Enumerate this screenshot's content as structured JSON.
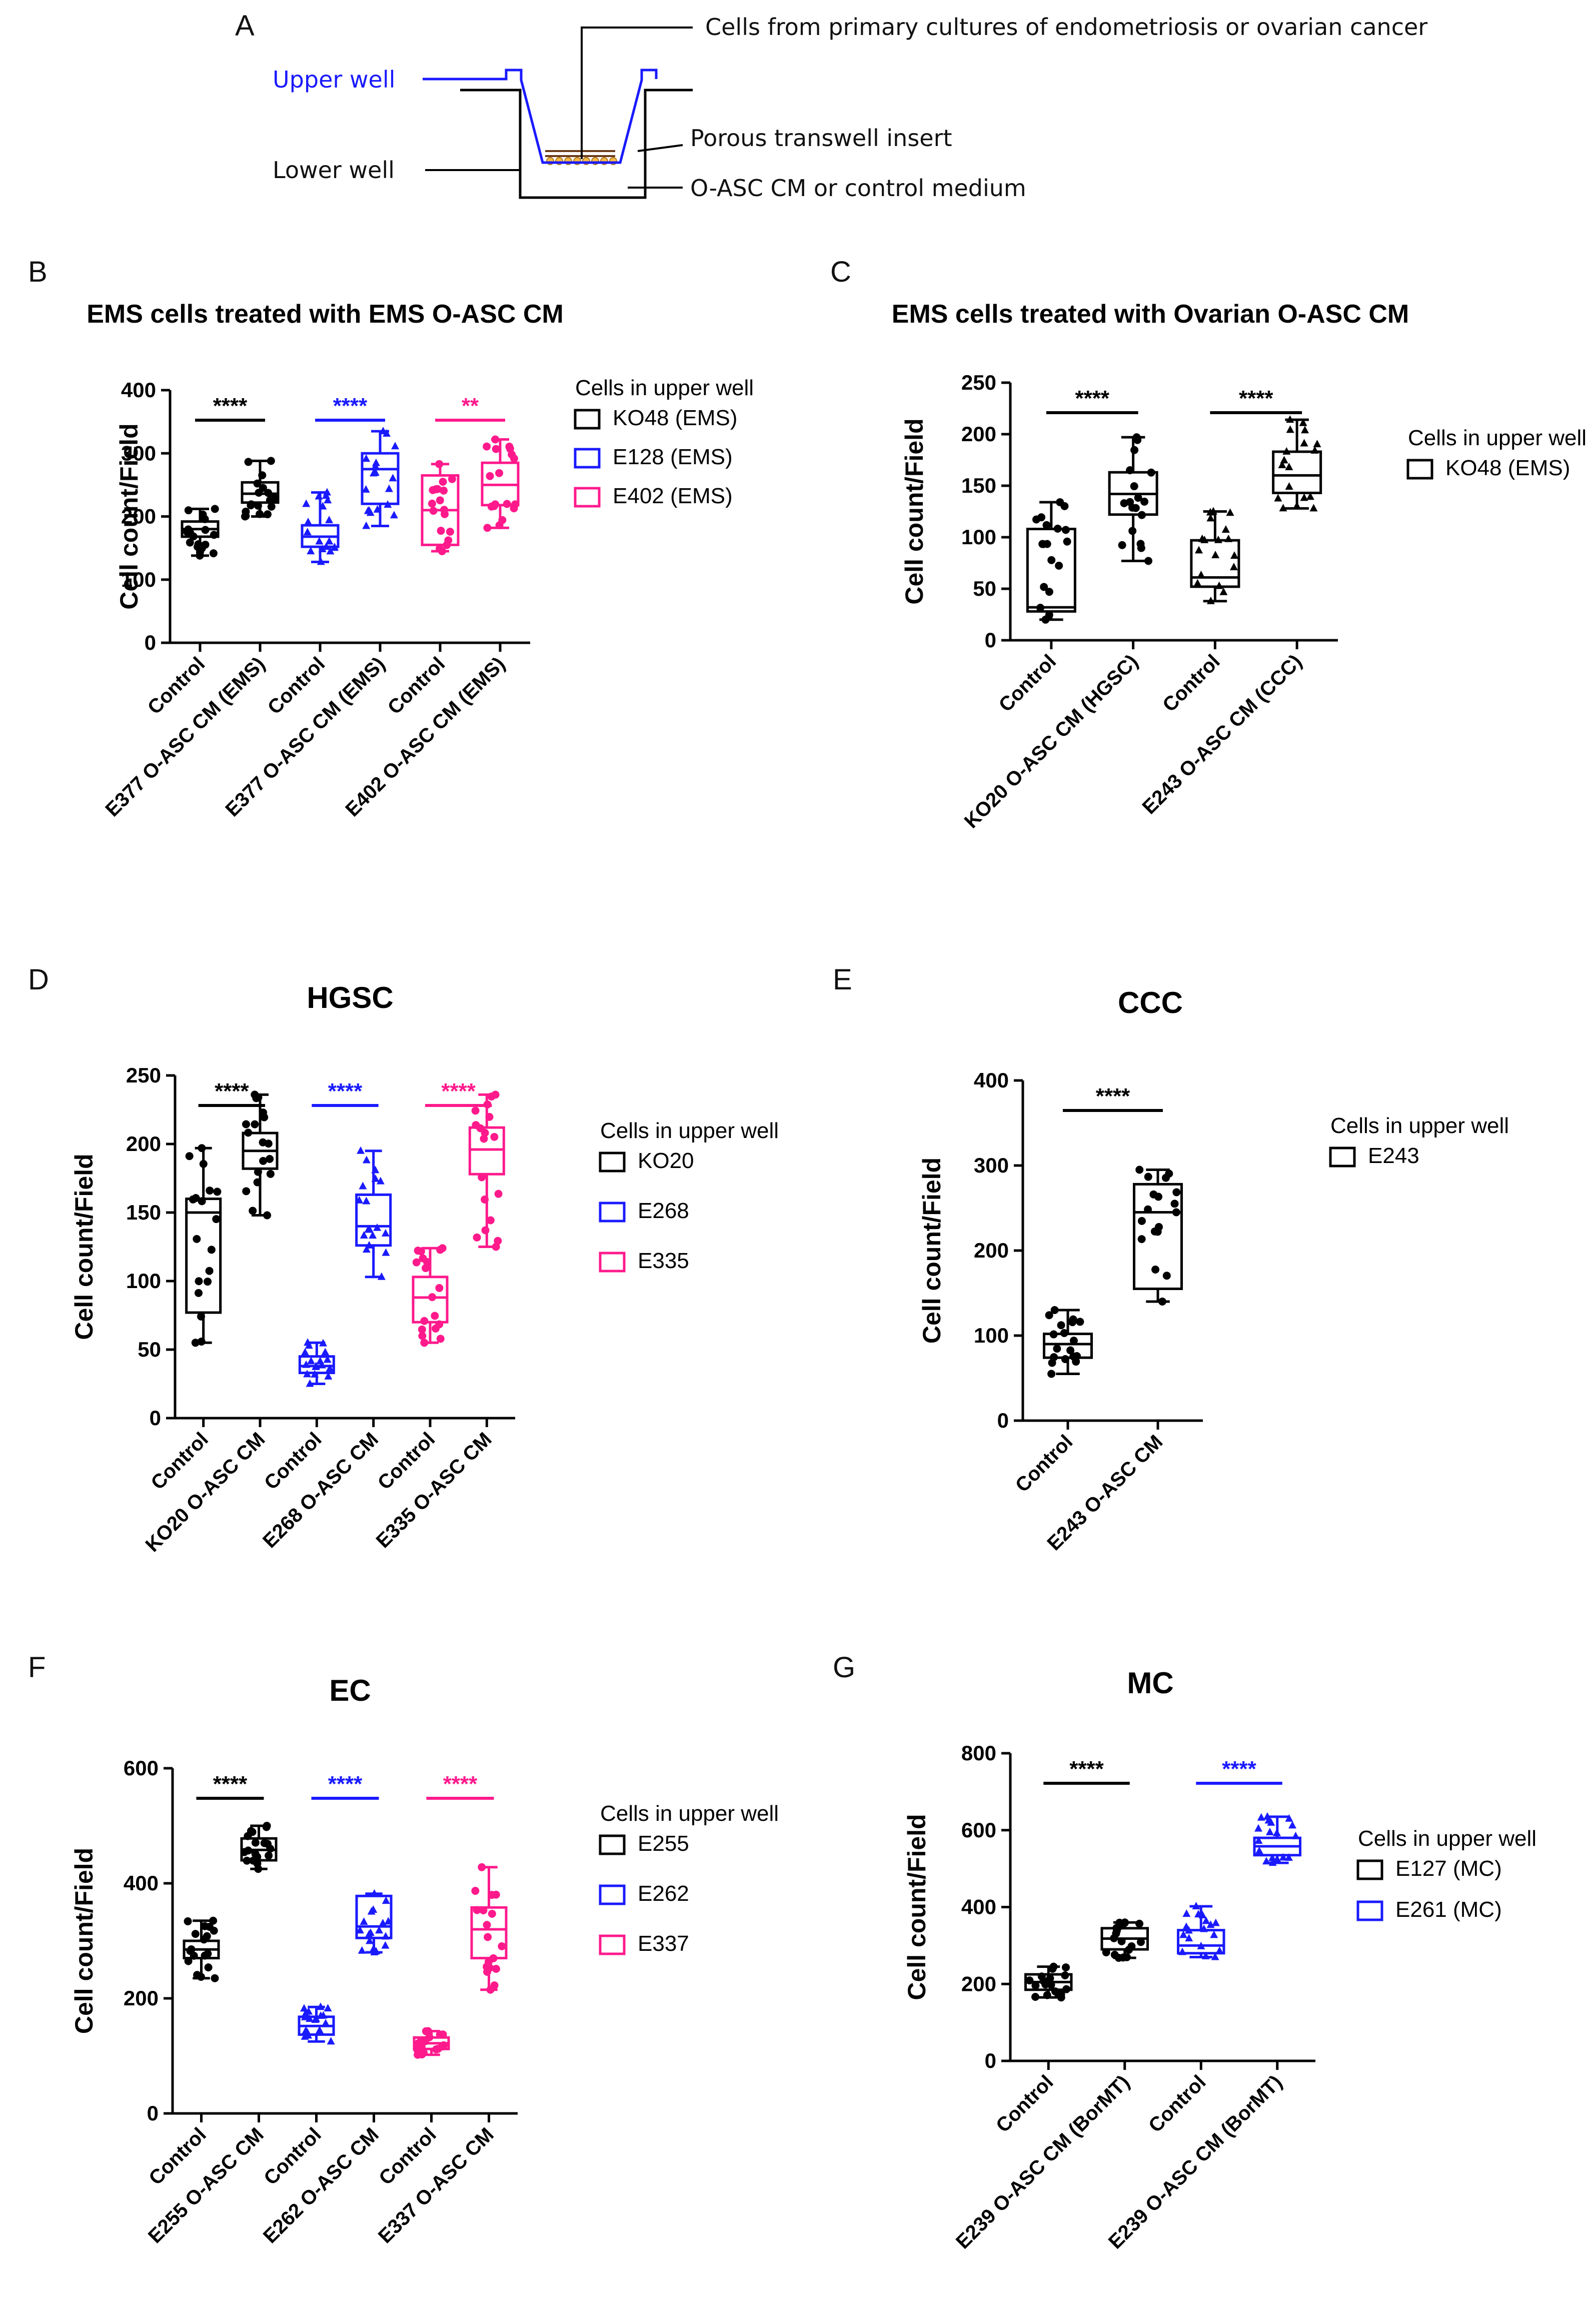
{
  "panel_labels": [
    "A",
    "B",
    "C",
    "D",
    "E",
    "F",
    "G"
  ],
  "schematic": {
    "upper_well": "Upper well",
    "lower_well": "Lower well",
    "cells_label": "Cells from primary cultures of endometriosis or ovarian cancer",
    "insert_label": "Porous transwell insert",
    "medium_label": "O-ASC CM or control medium",
    "upper_color": "#1a1aff"
  },
  "chart_data": [
    {
      "panel": "B",
      "type": "box",
      "title": "EMS cells treated with EMS O-ASC CM",
      "ylabel": "Cell count/Field",
      "ylim": [
        0,
        400
      ],
      "yticks": [
        0,
        100,
        200,
        300,
        400
      ],
      "categories": [
        "Control",
        "E377 O-ASC CM (EMS)",
        "Control",
        "E377 O-ASC CM (EMS)",
        "Control",
        "E402 O-ASC CM (EMS)"
      ],
      "legend_title": "Cells in upper well",
      "legend": [
        {
          "name": "KO48 (EMS)",
          "color": "#000000"
        },
        {
          "name": "E128 (EMS)",
          "color": "#1a1aff"
        },
        {
          "name": "E402 (EMS)",
          "color": "#ff1a8c"
        }
      ],
      "boxes": [
        {
          "min": 138,
          "q1": 168,
          "median": 180,
          "q3": 192,
          "max": 212,
          "color": "#000000",
          "marker": "circle"
        },
        {
          "min": 200,
          "q1": 222,
          "median": 236,
          "q3": 254,
          "max": 288,
          "color": "#000000",
          "marker": "circle"
        },
        {
          "min": 128,
          "q1": 152,
          "median": 168,
          "q3": 186,
          "max": 238,
          "color": "#1a1aff",
          "marker": "triangle"
        },
        {
          "min": 185,
          "q1": 220,
          "median": 275,
          "q3": 300,
          "max": 335,
          "color": "#1a1aff",
          "marker": "triangle"
        },
        {
          "min": 145,
          "q1": 155,
          "median": 210,
          "q3": 265,
          "max": 283,
          "color": "#ff1a8c",
          "marker": "circle"
        },
        {
          "min": 182,
          "q1": 218,
          "median": 250,
          "q3": 285,
          "max": 322,
          "color": "#ff1a8c",
          "marker": "circle"
        }
      ],
      "significance": [
        {
          "pair": [
            0,
            1
          ],
          "label": "****",
          "color": "#000000"
        },
        {
          "pair": [
            2,
            3
          ],
          "label": "****",
          "color": "#1a1aff"
        },
        {
          "pair": [
            4,
            5
          ],
          "label": "**",
          "color": "#ff1a8c"
        }
      ]
    },
    {
      "panel": "C",
      "type": "box",
      "title": "EMS cells treated with Ovarian O-ASC CM",
      "ylabel": "Cell count/Field",
      "ylim": [
        0,
        250
      ],
      "yticks": [
        0,
        50,
        100,
        150,
        200,
        250
      ],
      "categories": [
        "Control",
        "KO20 O-ASC CM (HGSC)",
        "Control",
        "E243 O-ASC CM (CCC)"
      ],
      "legend_title": "Cells in upper well",
      "legend": [
        {
          "name": "KO48 (EMS)",
          "color": "#000000"
        }
      ],
      "boxes": [
        {
          "min": 20,
          "q1": 28,
          "median": 32,
          "q3": 108,
          "max": 134,
          "color": "#000000",
          "marker": "circle"
        },
        {
          "min": 77,
          "q1": 122,
          "median": 142,
          "q3": 163,
          "max": 197,
          "color": "#000000",
          "marker": "circle"
        },
        {
          "min": 38,
          "q1": 52,
          "median": 61,
          "q3": 97,
          "max": 125,
          "color": "#000000",
          "marker": "triangle"
        },
        {
          "min": 128,
          "q1": 143,
          "median": 160,
          "q3": 183,
          "max": 214,
          "color": "#000000",
          "marker": "triangle"
        }
      ],
      "significance": [
        {
          "pair": [
            0,
            1
          ],
          "label": "****",
          "color": "#000000"
        },
        {
          "pair": [
            2,
            3
          ],
          "label": "****",
          "color": "#000000"
        }
      ]
    },
    {
      "panel": "D",
      "type": "box",
      "title": "HGSC",
      "ylabel": "Cell count/Field",
      "ylim": [
        0,
        250
      ],
      "yticks": [
        0,
        50,
        100,
        150,
        200,
        250
      ],
      "categories": [
        "Control",
        "KO20 O-ASC CM",
        "Control",
        "E268 O-ASC CM",
        "Control",
        "E335 O-ASC CM"
      ],
      "legend_title": "Cells in upper well",
      "legend": [
        {
          "name": "KO20",
          "color": "#000000"
        },
        {
          "name": "E268",
          "color": "#1a1aff"
        },
        {
          "name": "E335",
          "color": "#ff1a8c"
        }
      ],
      "boxes": [
        {
          "min": 55,
          "q1": 77,
          "median": 150,
          "q3": 160,
          "max": 197,
          "color": "#000000",
          "marker": "circle"
        },
        {
          "min": 148,
          "q1": 182,
          "median": 195,
          "q3": 208,
          "max": 236,
          "color": "#000000",
          "marker": "circle"
        },
        {
          "min": 25,
          "q1": 33,
          "median": 38,
          "q3": 45,
          "max": 55,
          "color": "#1a1aff",
          "marker": "triangle"
        },
        {
          "min": 103,
          "q1": 126,
          "median": 140,
          "q3": 163,
          "max": 195,
          "color": "#1a1aff",
          "marker": "triangle"
        },
        {
          "min": 55,
          "q1": 70,
          "median": 88,
          "q3": 103,
          "max": 124,
          "color": "#ff1a8c",
          "marker": "circle"
        },
        {
          "min": 125,
          "q1": 178,
          "median": 196,
          "q3": 212,
          "max": 236,
          "color": "#ff1a8c",
          "marker": "circle"
        }
      ],
      "significance": [
        {
          "pair": [
            0,
            1
          ],
          "label": "****",
          "color": "#000000"
        },
        {
          "pair": [
            2,
            3
          ],
          "label": "****",
          "color": "#1a1aff"
        },
        {
          "pair": [
            4,
            5
          ],
          "label": "****",
          "color": "#ff1a8c"
        }
      ]
    },
    {
      "panel": "E",
      "type": "box",
      "title": "CCC",
      "ylabel": "Cell count/Field",
      "ylim": [
        0,
        400
      ],
      "yticks": [
        0,
        100,
        200,
        300,
        400
      ],
      "categories": [
        "Control",
        "E243 O-ASC CM"
      ],
      "legend_title": "Cells in upper well",
      "legend": [
        {
          "name": "E243",
          "color": "#000000"
        }
      ],
      "boxes": [
        {
          "min": 55,
          "q1": 74,
          "median": 90,
          "q3": 102,
          "max": 130,
          "color": "#000000",
          "marker": "circle"
        },
        {
          "min": 140,
          "q1": 155,
          "median": 245,
          "q3": 278,
          "max": 295,
          "color": "#000000",
          "marker": "circle"
        }
      ],
      "significance": [
        {
          "pair": [
            0,
            1
          ],
          "label": "****",
          "color": "#000000"
        }
      ]
    },
    {
      "panel": "F",
      "type": "box",
      "title": "EC",
      "ylabel": "Cell count/Field",
      "ylim": [
        0,
        600
      ],
      "yticks": [
        0,
        200,
        400,
        600
      ],
      "categories": [
        "Control",
        "E255 O-ASC CM",
        "Control",
        "E262 O-ASC CM",
        "Control",
        "E337 O-ASC CM"
      ],
      "legend_title": "Cells in upper well",
      "legend": [
        {
          "name": "E255",
          "color": "#000000"
        },
        {
          "name": "E262",
          "color": "#1a1aff"
        },
        {
          "name": "E337",
          "color": "#ff1a8c"
        }
      ],
      "boxes": [
        {
          "min": 235,
          "q1": 270,
          "median": 285,
          "q3": 300,
          "max": 335,
          "color": "#000000",
          "marker": "circle"
        },
        {
          "min": 425,
          "q1": 440,
          "median": 458,
          "q3": 478,
          "max": 500,
          "color": "#000000",
          "marker": "circle"
        },
        {
          "min": 125,
          "q1": 137,
          "median": 152,
          "q3": 168,
          "max": 185,
          "color": "#1a1aff",
          "marker": "triangle"
        },
        {
          "min": 280,
          "q1": 305,
          "median": 325,
          "q3": 378,
          "max": 382,
          "color": "#1a1aff",
          "marker": "triangle"
        },
        {
          "min": 102,
          "q1": 112,
          "median": 122,
          "q3": 132,
          "max": 143,
          "color": "#ff1a8c",
          "marker": "circle"
        },
        {
          "min": 215,
          "q1": 270,
          "median": 320,
          "q3": 358,
          "max": 428,
          "color": "#ff1a8c",
          "marker": "circle"
        }
      ],
      "significance": [
        {
          "pair": [
            0,
            1
          ],
          "label": "****",
          "color": "#000000"
        },
        {
          "pair": [
            2,
            3
          ],
          "label": "****",
          "color": "#1a1aff"
        },
        {
          "pair": [
            4,
            5
          ],
          "label": "****",
          "color": "#ff1a8c"
        }
      ]
    },
    {
      "panel": "G",
      "type": "box",
      "title": "MC",
      "ylabel": "Cell count/Field",
      "ylim": [
        0,
        800
      ],
      "yticks": [
        0,
        200,
        400,
        600,
        800
      ],
      "categories": [
        "Control",
        "E239 O-ASC CM (BorMT)",
        "Control",
        "E239 O-ASC CM (BorMT)"
      ],
      "legend_title": "Cells in upper well",
      "legend": [
        {
          "name": "E127 (MC)",
          "color": "#000000"
        },
        {
          "name": "E261 (MC)",
          "color": "#1a1aff"
        }
      ],
      "boxes": [
        {
          "min": 165,
          "q1": 185,
          "median": 205,
          "q3": 225,
          "max": 245,
          "color": "#000000",
          "marker": "circle"
        },
        {
          "min": 268,
          "q1": 290,
          "median": 318,
          "q3": 345,
          "max": 360,
          "color": "#000000",
          "marker": "circle"
        },
        {
          "min": 270,
          "q1": 280,
          "median": 300,
          "q3": 340,
          "max": 402,
          "color": "#1a1aff",
          "marker": "triangle"
        },
        {
          "min": 515,
          "q1": 535,
          "median": 558,
          "q3": 580,
          "max": 635,
          "color": "#1a1aff",
          "marker": "triangle"
        }
      ],
      "significance": [
        {
          "pair": [
            0,
            1
          ],
          "label": "****",
          "color": "#000000"
        },
        {
          "pair": [
            2,
            3
          ],
          "label": "****",
          "color": "#1a1aff"
        }
      ]
    }
  ]
}
